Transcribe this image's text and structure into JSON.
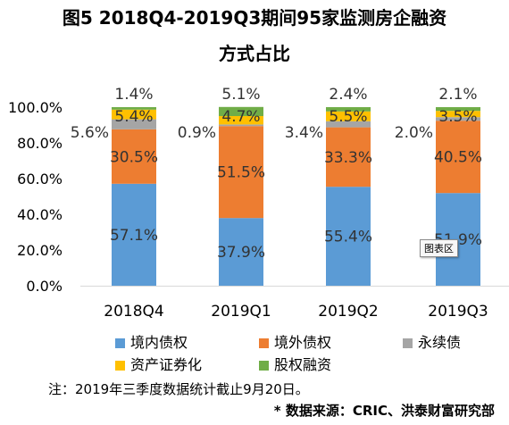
{
  "title_line1": "图5 2018Q4-2019Q3期间95家监测房企融资",
  "title_line2": "方式占比",
  "chart_data": {
    "type": "bar",
    "stacked": true,
    "categories": [
      "2018Q4",
      "2019Q1",
      "2019Q2",
      "2019Q3"
    ],
    "series": [
      {
        "name": "境内债权",
        "color": "#5B9BD5",
        "values": [
          57.1,
          37.9,
          55.4,
          51.9
        ],
        "labels": [
          "57.1%",
          "37.9%",
          "55.4%",
          "51.9%"
        ]
      },
      {
        "name": "境外债权",
        "color": "#ED7D31",
        "values": [
          30.5,
          51.5,
          33.3,
          40.5
        ],
        "labels": [
          "30.5%",
          "51.5%",
          "33.3%",
          "40.5%"
        ]
      },
      {
        "name": "永续债",
        "color": "#A5A5A5",
        "values": [
          5.6,
          0.9,
          3.4,
          2.0
        ],
        "labels": [
          "5.6%",
          "0.9%",
          "3.4%",
          "2.0%"
        ]
      },
      {
        "name": "资产证券化",
        "color": "#FFC000",
        "values": [
          5.4,
          4.7,
          5.5,
          3.5
        ],
        "labels": [
          "5.4%",
          "4.7%",
          "5.5%",
          "3.5%"
        ]
      },
      {
        "name": "股权融资",
        "color": "#70AD47",
        "values": [
          1.4,
          5.1,
          2.4,
          2.1
        ],
        "labels": [
          "1.4%",
          "5.1%",
          "2.4%",
          "2.1%"
        ]
      }
    ],
    "y_ticks": [
      "0.0%",
      "20.0%",
      "40.0%",
      "60.0%",
      "80.0%",
      "100.0%"
    ],
    "ylim": [
      0,
      100
    ],
    "grid": false,
    "legend_position": "bottom"
  },
  "legend_items": [
    "境内债权",
    "境外债权",
    "永续债",
    "资产证券化",
    "股权融资"
  ],
  "note": "注：2019年三季度数据统计截止9月20日。",
  "source": "* 数据来源：CRIC、洪泰财富研究部",
  "badge": "图表区"
}
